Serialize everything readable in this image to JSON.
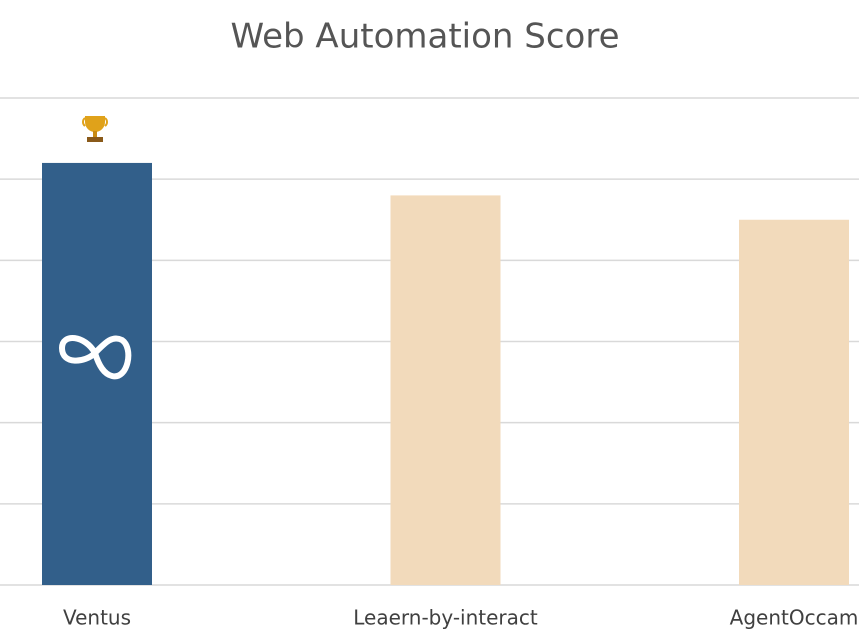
{
  "chart_data": {
    "type": "bar",
    "title": "Web Automation Score",
    "categories": [
      "Ventus",
      "Leaern-by-interact",
      "AgentOccam"
    ],
    "values": [
      5.2,
      4.8,
      4.5
    ],
    "colors": [
      "#325f8a",
      "#f2dabb",
      "#f2dabb"
    ],
    "ylim": [
      0,
      6
    ],
    "yticks": [
      0,
      1,
      2,
      3,
      4,
      5,
      6
    ],
    "grid": true,
    "y_tick_labels": false
  }
}
